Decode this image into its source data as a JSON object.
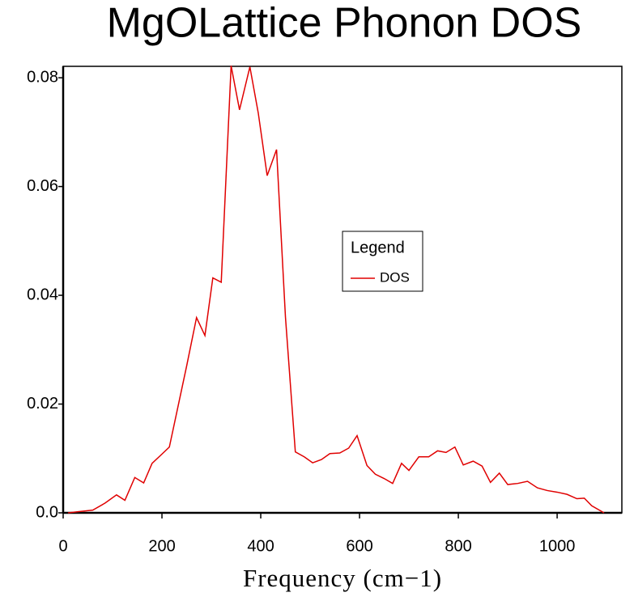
{
  "chart_data": {
    "type": "line",
    "title": "MgOLattice Phonon DOS",
    "x_label": "Frequency (cm−1)",
    "x": [
      10,
      30,
      60,
      85,
      108,
      125,
      145,
      163,
      180,
      200,
      215,
      250,
      270,
      287,
      303,
      320,
      340,
      357,
      378,
      395,
      413,
      432,
      450,
      470,
      488,
      505,
      523,
      540,
      560,
      578,
      595,
      615,
      632,
      650,
      667,
      685,
      700,
      720,
      740,
      758,
      775,
      793,
      810,
      830,
      848,
      865,
      883,
      900,
      920,
      940,
      960,
      980,
      1000,
      1020,
      1040,
      1055,
      1070,
      1095
    ],
    "series": [
      {
        "name": "DOS",
        "color": "#e00000",
        "values": [
          0,
          0.0002,
          0.0005,
          0.0018,
          0.0033,
          0.0023,
          0.0065,
          0.0055,
          0.0091,
          0.0108,
          0.0121,
          0.027,
          0.0359,
          0.0326,
          0.0432,
          0.0424,
          0.0822,
          0.0741,
          0.082,
          0.0735,
          0.062,
          0.0668,
          0.036,
          0.0112,
          0.0103,
          0.0092,
          0.0098,
          0.0109,
          0.011,
          0.0119,
          0.0142,
          0.0087,
          0.0071,
          0.0063,
          0.0054,
          0.0091,
          0.0078,
          0.0103,
          0.0103,
          0.0114,
          0.0111,
          0.0121,
          0.0088,
          0.0095,
          0.0086,
          0.0056,
          0.0073,
          0.0052,
          0.0054,
          0.0058,
          0.0046,
          0.0041,
          0.0038,
          0.0034,
          0.0026,
          0.0027,
          0.0013,
          0
        ]
      }
    ],
    "xlim": [
      0,
      1131
    ],
    "ylim": [
      0,
      0.0821
    ],
    "xticks": [
      0,
      200,
      400,
      600,
      800,
      1000
    ],
    "yticks": [
      {
        "value": 0,
        "label": "0.0"
      },
      0.02,
      0.04,
      0.06,
      0.08
    ],
    "legend_title": "Legend",
    "legend_position": "center-right",
    "grid": false
  }
}
